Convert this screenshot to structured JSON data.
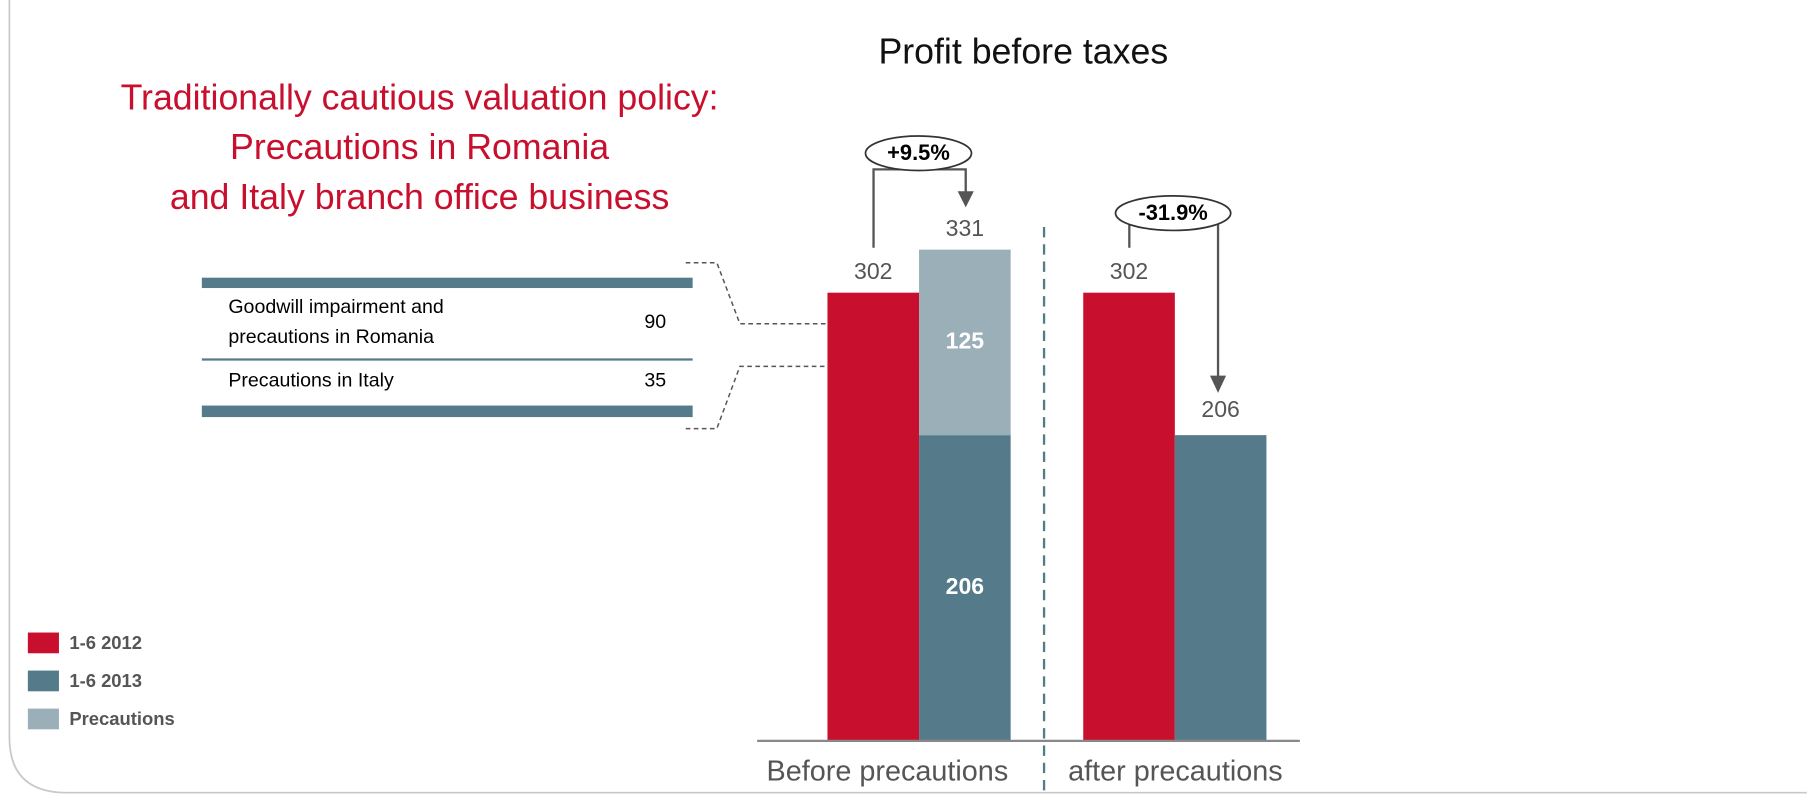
{
  "heading": [
    "Traditionally cautious valuation policy:",
    "Precautions in Romania",
    "and Italy branch office business"
  ],
  "table": {
    "rows": [
      {
        "label": [
          "Goodwill impairment and",
          "precautions in Romania"
        ],
        "value": 90
      },
      {
        "label": [
          "Precautions in Italy"
        ],
        "value": 35
      }
    ]
  },
  "chart_data": {
    "type": "bar",
    "title": "Profit before taxes",
    "categories": [
      "Before precautions",
      "after precautions"
    ],
    "series": [
      {
        "name": "1-6 2012",
        "color": "#c8102e",
        "values": [
          302,
          302
        ]
      },
      {
        "name": "1-6 2013",
        "color": "#557a8a",
        "values": [
          206,
          206
        ]
      },
      {
        "name": "Precautions",
        "color": "#9aafb8",
        "values": [
          125,
          null
        ]
      }
    ],
    "totals": [
      331,
      null
    ],
    "changes": [
      "+9.5%",
      "-31.9%"
    ],
    "ylim": [
      0,
      500
    ]
  }
}
